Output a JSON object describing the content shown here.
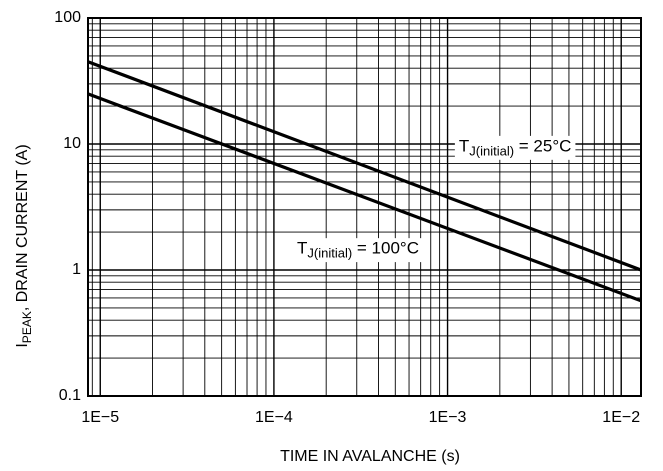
{
  "chart_data": {
    "type": "line",
    "title": "",
    "xlabel": "TIME IN AVALANCHE (s)",
    "ylabel": {
      "main_prefix": "I",
      "subscript": "PEAK",
      "main_suffix": ", DRAIN CURRENT (A)"
    },
    "x_scale": "log",
    "y_scale": "log",
    "xlim": [
      8.5e-06,
      0.013
    ],
    "ylim": [
      0.1,
      100
    ],
    "x_ticks": [
      {
        "value": 1e-05,
        "label": "1E−5"
      },
      {
        "value": 0.0001,
        "label": "1E−4"
      },
      {
        "value": 0.001,
        "label": "1E−3"
      },
      {
        "value": 0.01,
        "label": "1E−2"
      }
    ],
    "y_ticks": [
      {
        "value": 100,
        "label": "100"
      },
      {
        "value": 10,
        "label": "10"
      },
      {
        "value": 1,
        "label": "1"
      },
      {
        "value": 0.1,
        "label": "0.1"
      }
    ],
    "grid": true,
    "series": [
      {
        "label_main": "T",
        "label_sub": "J(initial)",
        "label_suffix": " = 25°C",
        "color": "#000000",
        "points": [
          [
            8.5e-06,
            45
          ],
          [
            0.013,
            1.0
          ]
        ],
        "label_at": [
          0.00245,
          9.4
        ]
      },
      {
        "label_main": "T",
        "label_sub": "J(initial)",
        "label_suffix": " = 100°C",
        "color": "#000000",
        "points": [
          [
            8.5e-06,
            25
          ],
          [
            0.013,
            0.57
          ]
        ],
        "label_at": [
          0.000305,
          1.45
        ]
      }
    ]
  }
}
